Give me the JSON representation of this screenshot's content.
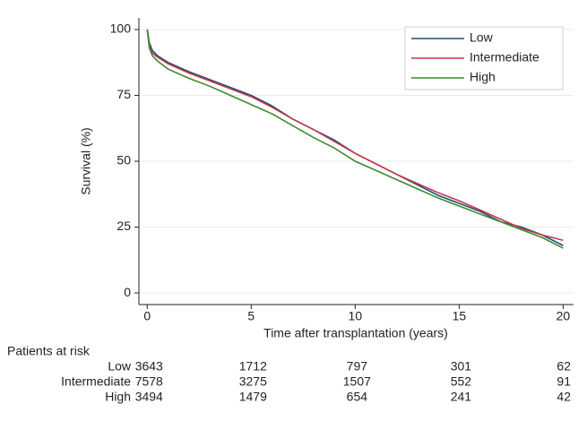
{
  "chart_data": {
    "type": "line",
    "y_label": "Survival (%)",
    "x_label": "Time after transplantation (years)",
    "x": [
      0,
      0.1,
      0.25,
      0.5,
      1,
      2,
      3,
      4,
      5,
      6,
      7,
      8,
      9,
      10,
      11,
      12,
      13,
      14,
      15,
      16,
      17,
      18,
      19,
      20
    ],
    "series": [
      {
        "name": "Low",
        "color": "#1f4f7a",
        "values": [
          100,
          95,
          92,
          90,
          87.5,
          84,
          81,
          78,
          75,
          71,
          66,
          62,
          58,
          53,
          49,
          45,
          41,
          37,
          34,
          31,
          27,
          25,
          22,
          18
        ],
        "at_risk": [
          3643,
          1712,
          797,
          301,
          62
        ]
      },
      {
        "name": "Intermediate",
        "color": "#c8374a",
        "values": [
          100,
          94,
          91,
          89.5,
          87,
          83.5,
          80.5,
          77.5,
          74.5,
          70.5,
          66,
          62,
          57.5,
          53,
          49,
          45,
          41.5,
          38,
          35,
          31.5,
          28,
          24.5,
          22,
          20
        ],
        "at_risk": [
          7578,
          3275,
          1507,
          552,
          91
        ]
      },
      {
        "name": "High",
        "color": "#3c8a32",
        "values": [
          100,
          93,
          90,
          88,
          85,
          81.5,
          78.5,
          75,
          71.5,
          68,
          63.5,
          59,
          55,
          50,
          46.5,
          43,
          39.5,
          36,
          33,
          30,
          27,
          24,
          21,
          17
        ],
        "at_risk": [
          3494,
          1479,
          654,
          241,
          42
        ]
      }
    ],
    "risk_table_title": "Patients at risk",
    "xlim": [
      -0.4,
      20.5
    ],
    "ylim": [
      -4.4,
      104.4
    ],
    "xticks": [
      0,
      5,
      10,
      15,
      20
    ],
    "yticks": [
      0,
      25,
      50,
      75,
      100
    ],
    "grid": true,
    "legend": "top-right"
  }
}
